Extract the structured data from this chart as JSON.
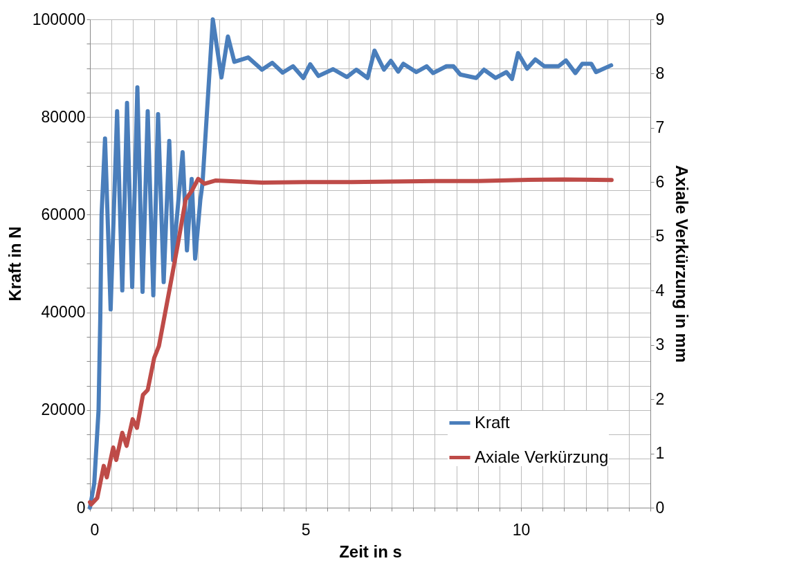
{
  "chart_data": {
    "type": "line",
    "xlabel": "Zeit in s",
    "ylabel": "Kraft in N",
    "y2label": "Axiale Verkürzung in mm",
    "xlim": [
      0,
      13
    ],
    "xticks": [
      0,
      {
        "value": 0.5,
        "label": null
      },
      {
        "value": 1,
        "label": null
      },
      {
        "value": 1.5,
        "label": null
      },
      {
        "value": 2,
        "label": null
      },
      {
        "value": 2.5,
        "label": null
      },
      {
        "value": 3,
        "label": null
      },
      {
        "value": 3.5,
        "label": null
      },
      {
        "value": 4,
        "label": null
      },
      {
        "value": 4.5,
        "label": null
      },
      5,
      {
        "value": 5.5,
        "label": null
      },
      {
        "value": 6,
        "label": null
      },
      {
        "value": 6.5,
        "label": null
      },
      {
        "value": 7,
        "label": null
      },
      {
        "value": 7.5,
        "label": null
      },
      {
        "value": 8,
        "label": null
      },
      {
        "value": 8.5,
        "label": null
      },
      {
        "value": 9,
        "label": null
      },
      {
        "value": 9.5,
        "label": null
      },
      10,
      {
        "value": 10.5,
        "label": null
      },
      {
        "value": 11,
        "label": null
      },
      {
        "value": 11.5,
        "label": null
      },
      {
        "value": 12,
        "label": null
      },
      {
        "value": 12.5,
        "label": null
      },
      {
        "value": 13,
        "label": null
      }
    ],
    "ylim": [
      0,
      100000
    ],
    "yticks": [
      0,
      {
        "value": 5000,
        "label": null
      },
      {
        "value": 10000,
        "label": null
      },
      {
        "value": 15000,
        "label": null
      },
      20000,
      {
        "value": 25000,
        "label": null
      },
      {
        "value": 30000,
        "label": null
      },
      {
        "value": 35000,
        "label": null
      },
      40000,
      {
        "value": 45000,
        "label": null
      },
      {
        "value": 50000,
        "label": null
      },
      {
        "value": 55000,
        "label": null
      },
      60000,
      {
        "value": 65000,
        "label": null
      },
      {
        "value": 70000,
        "label": null
      },
      {
        "value": 75000,
        "label": null
      },
      80000,
      {
        "value": 85000,
        "label": null
      },
      {
        "value": 90000,
        "label": null
      },
      {
        "value": 95000,
        "label": null
      },
      100000
    ],
    "y2lim": [
      0,
      9
    ],
    "y2ticks": [
      0,
      1,
      2,
      3,
      4,
      5,
      6,
      7,
      8,
      9
    ],
    "grid": true,
    "legend": "bottom right",
    "line_style": "solid",
    "series": [
      {
        "name": "Kraft",
        "color": "#4a7ebb",
        "x": [
          0,
          0.1,
          0.2,
          0.24,
          0.27,
          0.35,
          0.48,
          0.63,
          0.75,
          0.86,
          0.98,
          1.1,
          1.22,
          1.34,
          1.47,
          1.58,
          1.71,
          1.84,
          1.93,
          2.15,
          2.25,
          2.36,
          2.44,
          2.56,
          2.61,
          2.85,
          3.05,
          3.2,
          3.35,
          3.67,
          3.99,
          4.23,
          4.47,
          4.71,
          4.95,
          5.11,
          5.3,
          5.64,
          5.96,
          6.18,
          6.44,
          6.6,
          6.82,
          6.98,
          7.15,
          7.27,
          7.57,
          7.81,
          7.96,
          8.27,
          8.43,
          8.59,
          8.96,
          9.14,
          9.41,
          9.66,
          9.79,
          9.93,
          10.14,
          10.33,
          10.54,
          10.87,
          11.04,
          11.26,
          11.42,
          11.63,
          11.74,
          12.09
        ],
        "values": [
          0,
          5000,
          20000,
          39000,
          60000,
          75600,
          40600,
          81200,
          44500,
          82900,
          45200,
          86100,
          44200,
          81200,
          43500,
          80600,
          46200,
          75100,
          50700,
          72800,
          52700,
          67300,
          51000,
          63000,
          66300,
          100000,
          88100,
          96500,
          91300,
          92200,
          89700,
          91100,
          89100,
          90400,
          88000,
          90800,
          88400,
          89800,
          88200,
          89700,
          88000,
          93600,
          89700,
          91500,
          89300,
          90900,
          89200,
          90400,
          89000,
          90400,
          90400,
          88700,
          88000,
          89700,
          88000,
          89200,
          87800,
          93100,
          89900,
          91800,
          90400,
          90400,
          91600,
          89000,
          90900,
          90900,
          89200,
          90600
        ]
      },
      {
        "name": "Axiale Verkürzung",
        "color": "#be4b48",
        "x": [
          0,
          0.03,
          0.17,
          0.32,
          0.39,
          0.54,
          0.61,
          0.75,
          0.85,
          0.99,
          1.09,
          1.23,
          1.34,
          1.49,
          1.6,
          1.85,
          2.04,
          2.22,
          2.37,
          2.51,
          2.66,
          2.92,
          4,
          5,
          6,
          7,
          8,
          9,
          10,
          11,
          12.1
        ],
        "values": [
          0.1,
          0.06,
          0.18,
          0.77,
          0.56,
          1.11,
          0.88,
          1.38,
          1.14,
          1.63,
          1.47,
          2.08,
          2.17,
          2.76,
          2.98,
          4.04,
          4.86,
          5.68,
          5.85,
          6.06,
          5.97,
          6.03,
          5.99,
          6.0,
          6.0,
          6.01,
          6.02,
          6.02,
          6.04,
          6.05,
          6.04
        ],
        "axis": "y2"
      }
    ]
  }
}
